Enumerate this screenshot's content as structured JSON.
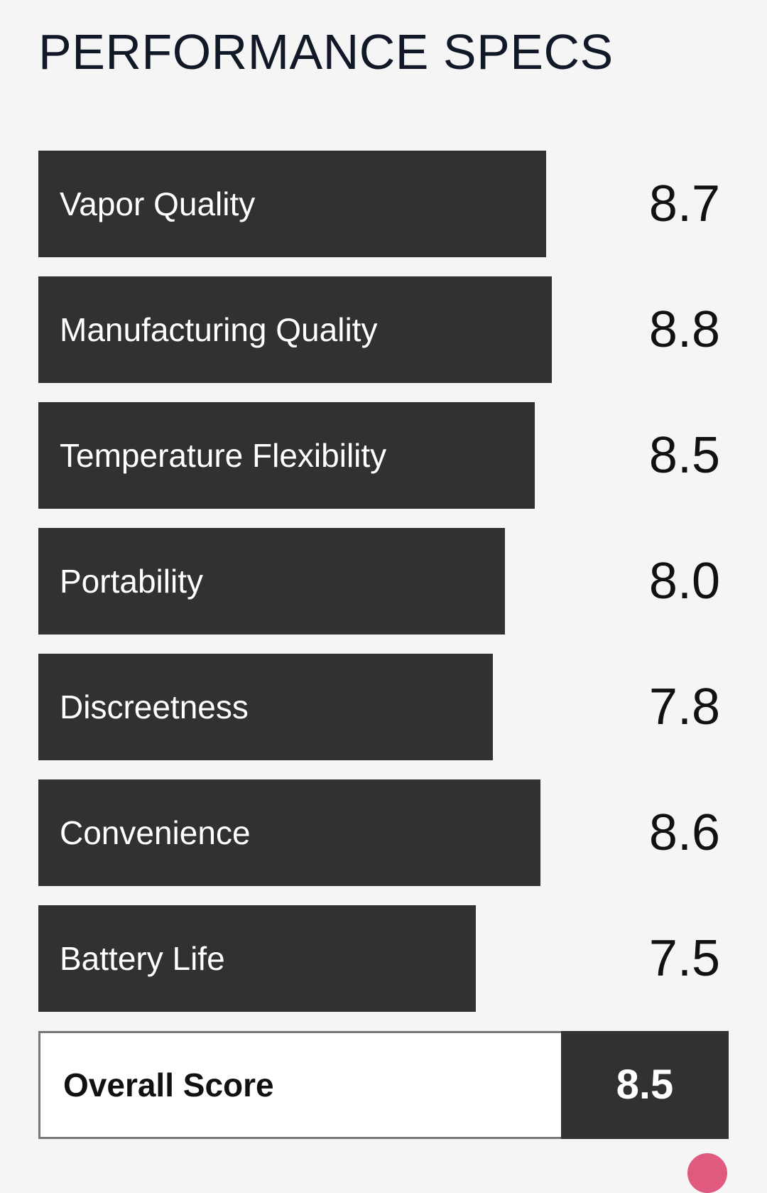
{
  "title": "PERFORMANCE SPECS",
  "scale_max": 10,
  "specs": [
    {
      "label": "Vapor Quality",
      "score": "8.7",
      "value": 8.7
    },
    {
      "label": "Manufacturing Quality",
      "score": "8.8",
      "value": 8.8
    },
    {
      "label": "Temperature Flexibility",
      "score": "8.5",
      "value": 8.5
    },
    {
      "label": "Portability",
      "score": "8.0",
      "value": 8.0
    },
    {
      "label": "Discreetness",
      "score": "7.8",
      "value": 7.8
    },
    {
      "label": "Convenience",
      "score": "8.6",
      "value": 8.6
    },
    {
      "label": "Battery Life",
      "score": "7.5",
      "value": 7.5
    }
  ],
  "overall": {
    "label": "Overall Score",
    "score": "8.5"
  },
  "colors": {
    "bar": "#313131",
    "background": "#f5f5f5",
    "accent": "#e05a80"
  }
}
